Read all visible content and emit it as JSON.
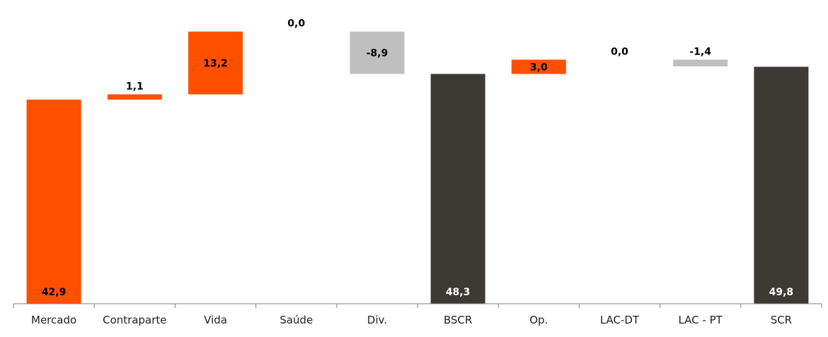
{
  "chart_data": {
    "type": "bar",
    "subtype": "waterfall",
    "categories": [
      "Mercado",
      "Contraparte",
      "Vida",
      "Saúde",
      "Div.",
      "BSCR",
      "Op.",
      "LAC-DT",
      "LAC - PT",
      "SCR"
    ],
    "values": [
      42.9,
      1.1,
      13.2,
      0.0,
      -8.9,
      48.3,
      3.0,
      0.0,
      -1.4,
      49.8
    ],
    "value_labels": [
      "42,9",
      "1,1",
      "13,2",
      "0,0",
      "-8,9",
      "48,3",
      "3,0",
      "0,0",
      "-1,4",
      "49,8"
    ],
    "bar_kinds": [
      "increase",
      "increase",
      "increase",
      "increase",
      "decrease",
      "total",
      "increase",
      "increase",
      "decrease",
      "total"
    ],
    "label_positions": [
      "inside-bottom",
      "above",
      "inside",
      "above",
      "inside",
      "inside-bottom",
      "inside",
      "above",
      "above",
      "inside-bottom"
    ],
    "ylim": [
      0,
      57
    ],
    "grid": false,
    "legend": "none",
    "colors": {
      "increase": "#FF5000",
      "decrease": "#BFBFBF",
      "total": "#3D3935",
      "axis": "#7F7F7F",
      "label_dark": "#000000",
      "label_light": "#FFFFFF"
    }
  }
}
